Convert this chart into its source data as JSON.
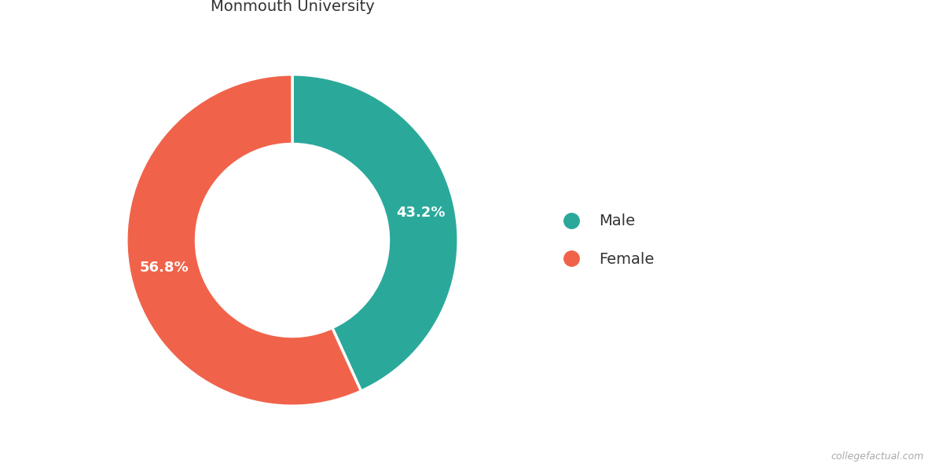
{
  "labels": [
    "Male",
    "Female"
  ],
  "values": [
    43.2,
    56.8
  ],
  "colors": [
    "#2aa99b",
    "#f0634a"
  ],
  "label_texts": [
    "43.2%",
    "56.8%"
  ],
  "background_color": "#ffffff",
  "title_fontsize": 14,
  "label_fontsize": 13,
  "legend_fontsize": 14,
  "watermark": "collegefactual.com",
  "donut_width": 0.42
}
